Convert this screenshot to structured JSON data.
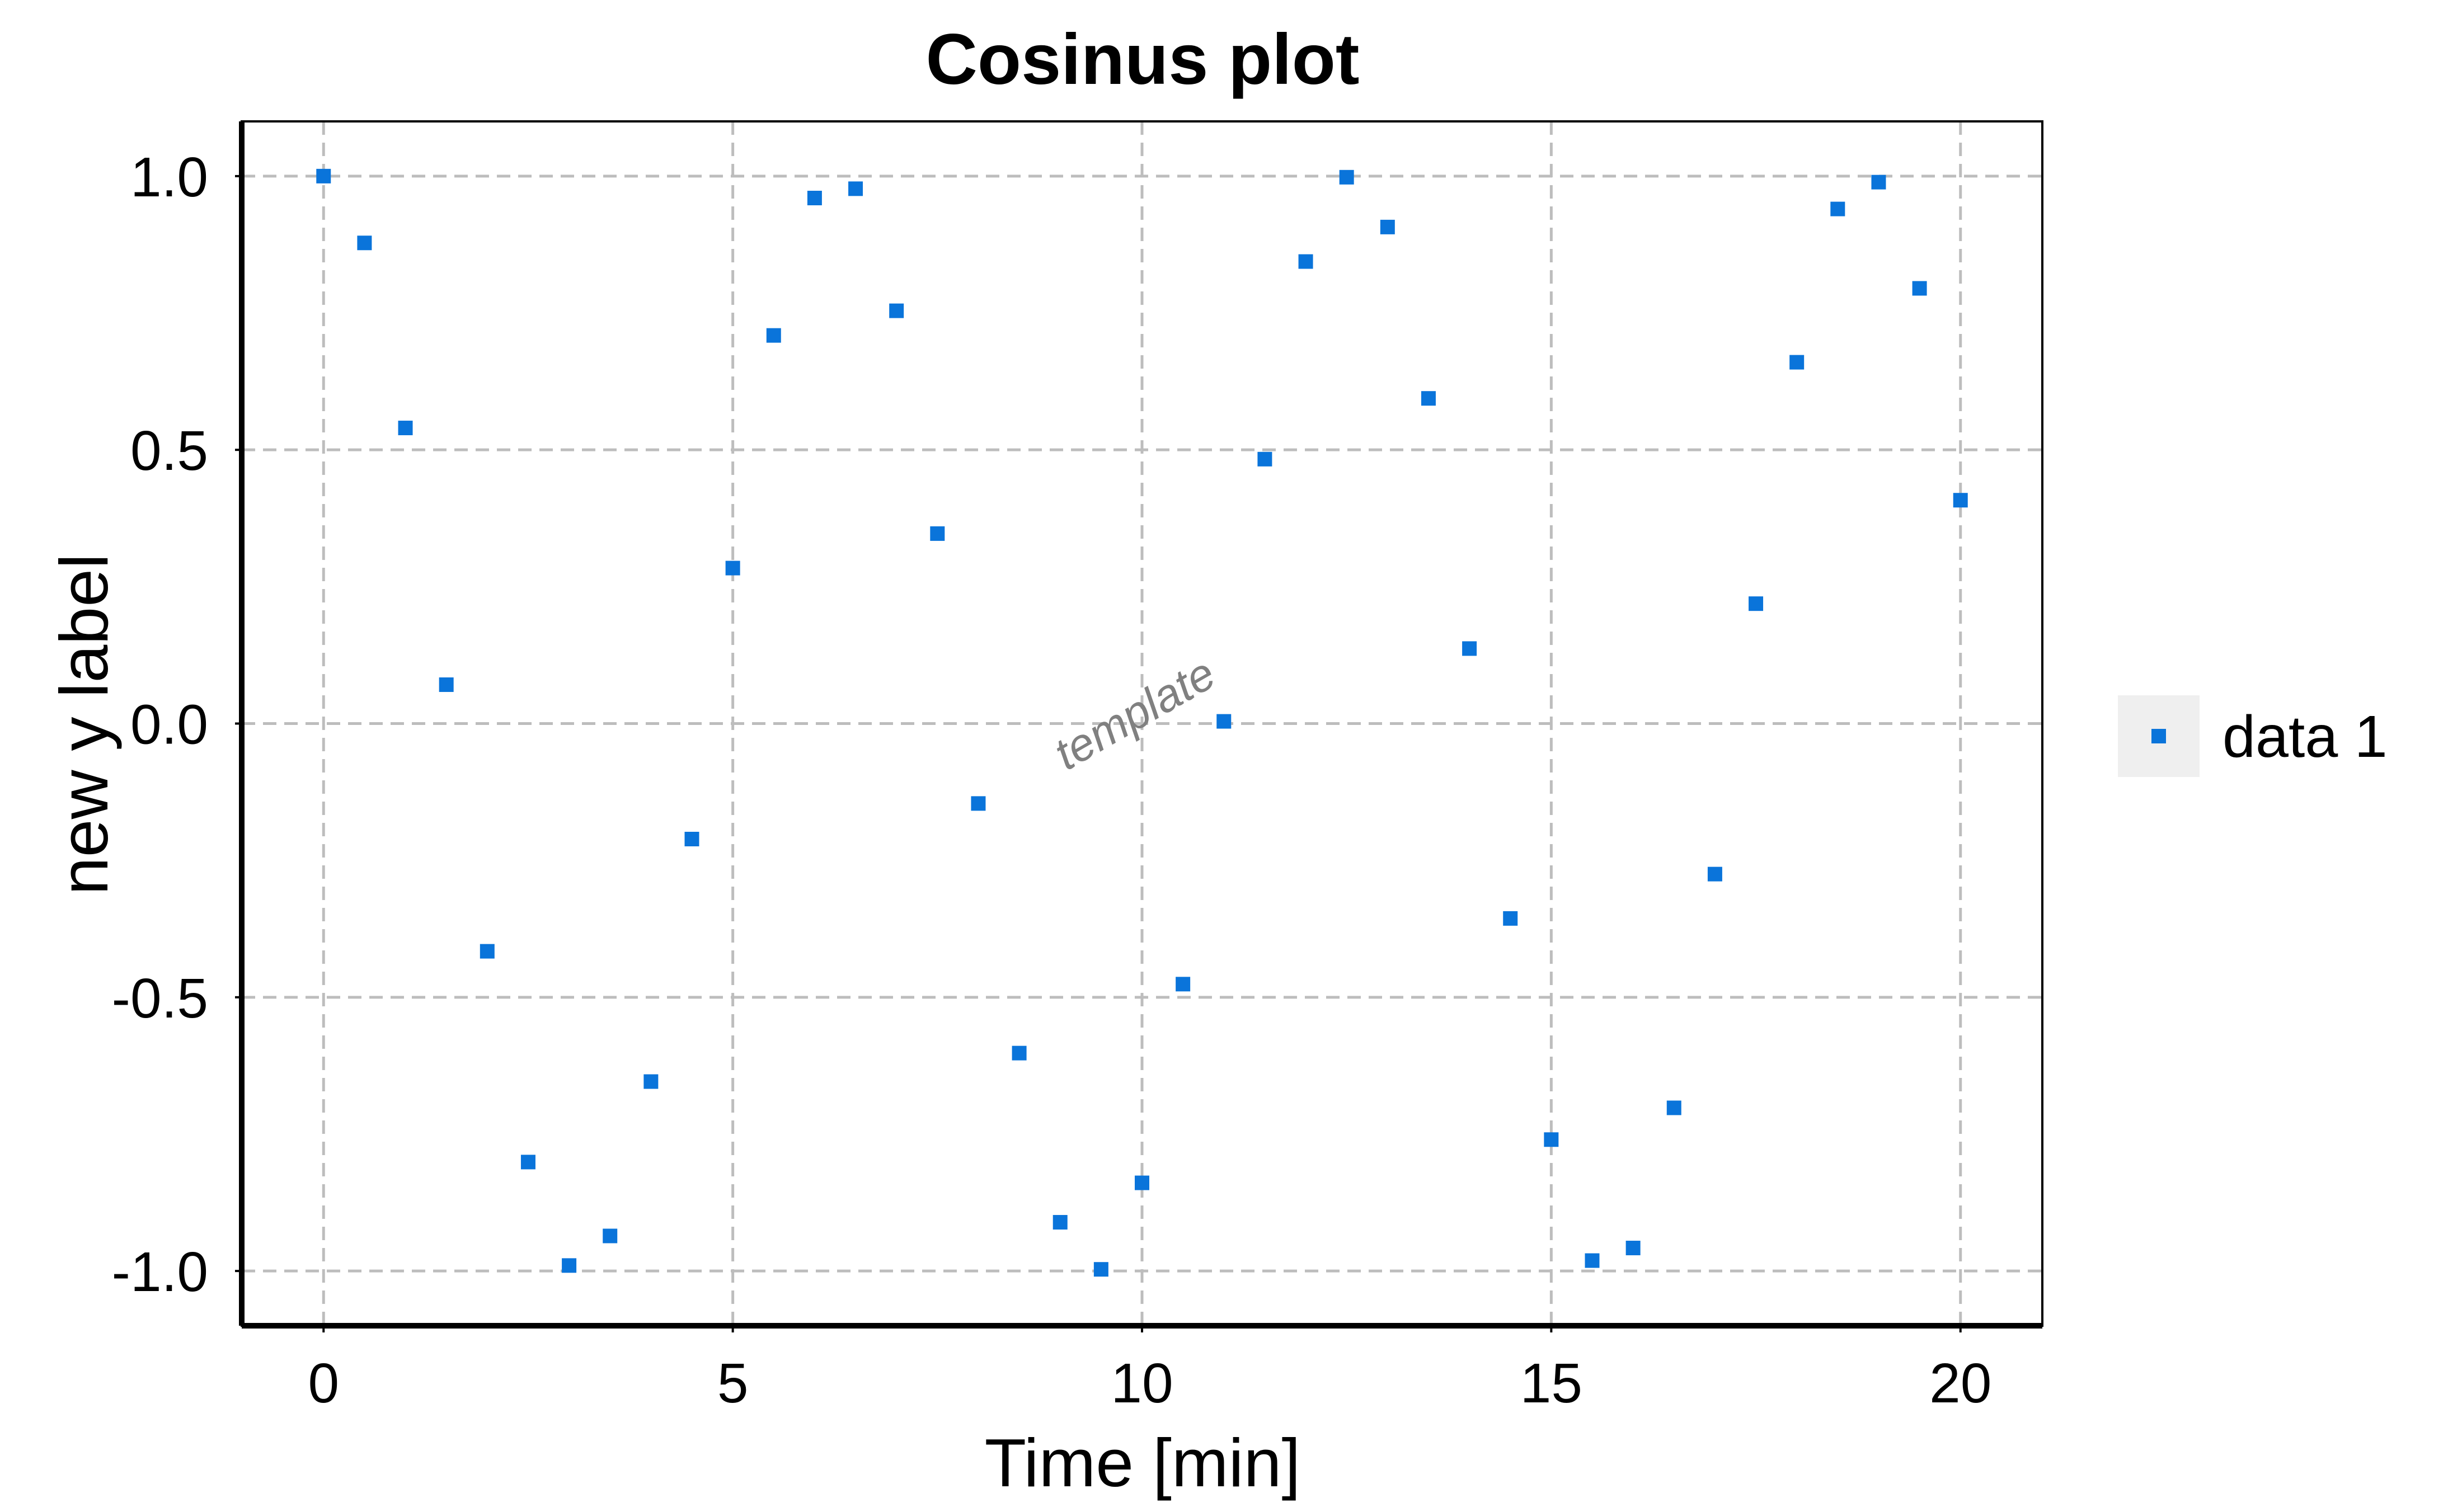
{
  "chart_data": {
    "type": "scatter",
    "title": "Cosinus plot",
    "xlabel": "Time [min]",
    "ylabel": "new y label",
    "xlim": [
      -1,
      21
    ],
    "ylim": [
      -1.1,
      1.1
    ],
    "xticks": [
      0,
      5,
      10,
      15,
      20
    ],
    "xtick_labels": [
      "0",
      "5",
      "10",
      "15",
      "20"
    ],
    "yticks": [
      1.0,
      0.5,
      0.0,
      -0.5,
      -1.0
    ],
    "ytick_labels": [
      "1.0",
      "0.5",
      "0.0",
      "-0.5",
      "-1.0"
    ],
    "grid": true,
    "grid_style": "dashed",
    "legend_position": "right",
    "annotation": "template",
    "marker_color": "#0a74da",
    "series": [
      {
        "name": "data 1",
        "x": [
          0,
          0.5,
          1,
          1.5,
          2,
          2.5,
          3,
          3.5,
          4,
          4.5,
          5,
          5.5,
          6,
          6.5,
          7,
          7.5,
          8,
          8.5,
          9,
          9.5,
          10,
          10.5,
          11,
          11.5,
          12,
          12.5,
          13,
          13.5,
          14,
          14.5,
          15,
          15.5,
          16,
          16.5,
          17,
          17.5,
          18,
          18.5,
          19,
          19.5,
          20
        ],
        "y": [
          1.0,
          0.878,
          0.54,
          0.071,
          -0.416,
          -0.801,
          -0.99,
          -0.936,
          -0.654,
          -0.211,
          0.284,
          0.709,
          0.96,
          0.977,
          0.754,
          0.347,
          -0.146,
          -0.602,
          -0.911,
          -0.997,
          -0.839,
          -0.476,
          0.004,
          0.483,
          0.844,
          0.998,
          0.907,
          0.594,
          0.137,
          -0.356,
          -0.76,
          -0.981,
          -0.958,
          -0.702,
          -0.275,
          0.219,
          0.66,
          0.94,
          0.989,
          0.795,
          0.408
        ]
      }
    ]
  }
}
